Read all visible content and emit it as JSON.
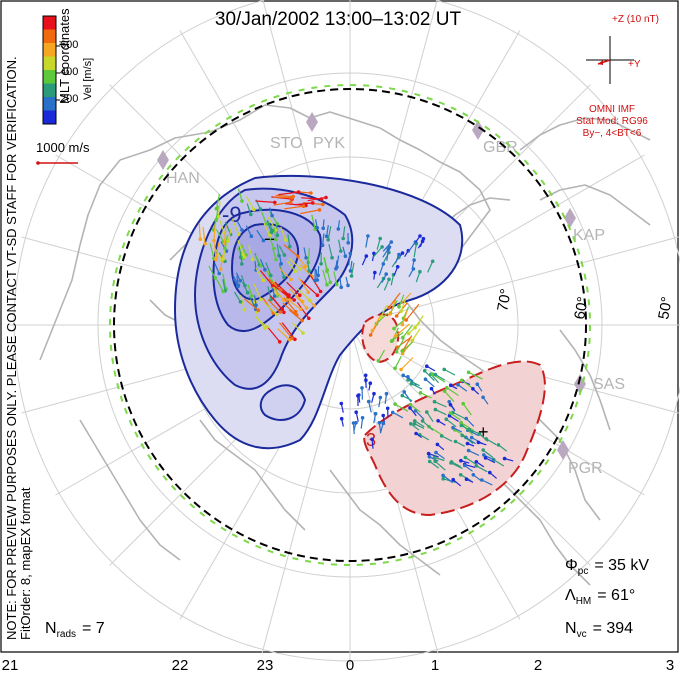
{
  "title": "30/Jan/2002 13:00–13:02 UT",
  "side_note_line1": "NOTE: FOR PREVIEW PURPOSES ONLY. PLEASE CONTACT VT-SD STAFF FOR VERIFICATION.",
  "side_note_line2": "FitOrder: 8, mapEX format",
  "coord_label": "MLT coordinates",
  "colorbar": {
    "label": "Vel [m/s]",
    "ticks": [
      "600",
      "400",
      "200"
    ],
    "colors": [
      "#e8101a",
      "#f06a10",
      "#f5a623",
      "#c8d82a",
      "#5dc83a",
      "#2a9c7a",
      "#2870c8",
      "#1a2ad8"
    ]
  },
  "vector_scale_label": "1000 m/s",
  "imf": {
    "axis_z": "+Z (10 nT)",
    "axis_y": "+Y",
    "source": "OMNI IMF",
    "model": "Stat Mod: RG96",
    "conditions": "By−, 4<BT<6"
  },
  "stations": [
    "HAN",
    "STO",
    "PYK",
    "GBR",
    "KAP",
    "SAS",
    "PGR"
  ],
  "latitude_labels": [
    "70°",
    "60°",
    "50°"
  ],
  "contour_labels": [
    "-9",
    "3"
  ],
  "potential_markers": [
    "−",
    "+"
  ],
  "stats": {
    "phi_symbol": "Φ",
    "phi_sub": "pc",
    "phi_value": "= 35 kV",
    "lambda_symbol": "Λ",
    "lambda_sub": "HM",
    "lambda_value": "= 61°",
    "nvc_symbol": "N",
    "nvc_sub": "vc",
    "nvc_value": "= 394",
    "nrads_symbol": "N",
    "nrads_sub": "rads",
    "nrads_value": "= 7"
  },
  "mlt_ticks": [
    "21",
    "22",
    "23",
    "0",
    "1",
    "2",
    "3"
  ],
  "colors": {
    "negative_contour": "#1a2a9c",
    "negative_fill": "#c8c8f0",
    "positive_contour": "#c81e1e",
    "positive_fill": "#f2c8c8",
    "map": "#b4b4b4",
    "grid": "#d0d0d0",
    "imf_text": "#d01010"
  }
}
